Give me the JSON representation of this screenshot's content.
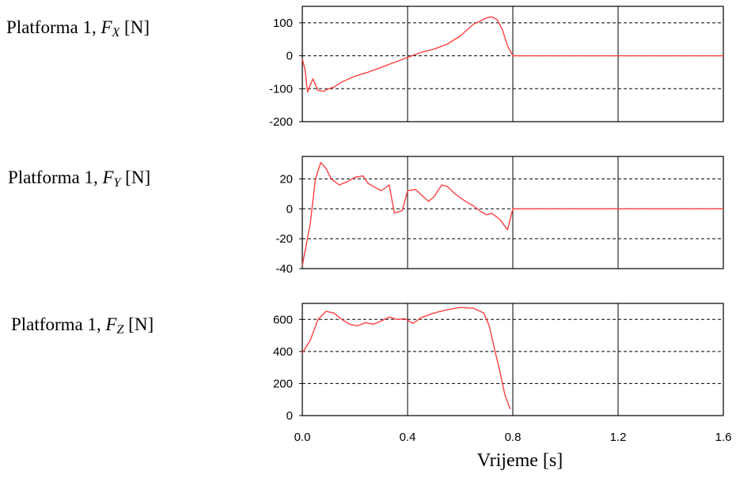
{
  "panels": [
    {
      "label_prefix": "Platforma 1, ",
      "label_var": "F",
      "label_sub": "X",
      "label_unit": " [N]"
    },
    {
      "label_prefix": "Platforma 1, ",
      "label_var": "F",
      "label_sub": "Y",
      "label_unit": " [N]"
    },
    {
      "label_prefix": "Platforma 1, ",
      "label_var": "F",
      "label_sub": "Z",
      "label_unit": " [N]"
    }
  ],
  "xlabel": "Vrijeme [s]",
  "x_ticks": [
    "0.0",
    "0.4",
    "0.8",
    "1.2",
    "1.6"
  ],
  "colors": {
    "series": "#ff4040",
    "axes": "#000000",
    "grid": "#000000"
  },
  "chart_data": [
    {
      "type": "line",
      "xlim": [
        0,
        1.6
      ],
      "ylim": [
        -200,
        150
      ],
      "y_ticks": [
        100,
        0,
        -100,
        -200
      ],
      "y_tick_labels": [
        "100",
        "0",
        "-100",
        "-200"
      ],
      "vertical_grid": [
        0.4,
        0.8,
        1.2
      ],
      "vertical_grid_style": "solid",
      "horizontal_grid": [
        100,
        0,
        -100
      ],
      "horizontal_grid_style": "dashed",
      "xlabel": "Vrijeme [s]",
      "series": [
        {
          "x": [
            0.0,
            0.01,
            0.02,
            0.04,
            0.06,
            0.08,
            0.1,
            0.12,
            0.15,
            0.2,
            0.25,
            0.3,
            0.35,
            0.4,
            0.45,
            0.5,
            0.55,
            0.6,
            0.65,
            0.7,
            0.72,
            0.74,
            0.76,
            0.78,
            0.8,
            1.6
          ],
          "y": [
            -10,
            -40,
            -110,
            -70,
            -105,
            -108,
            -100,
            -95,
            -80,
            -62,
            -50,
            -35,
            -20,
            -5,
            10,
            20,
            35,
            60,
            95,
            115,
            118,
            110,
            80,
            30,
            0,
            0
          ]
        }
      ]
    },
    {
      "type": "line",
      "xlim": [
        0,
        1.6
      ],
      "ylim": [
        -40,
        35
      ],
      "y_ticks": [
        20,
        0,
        -20,
        -40
      ],
      "y_tick_labels": [
        "20",
        "0",
        "-20",
        "-40"
      ],
      "vertical_grid": [
        0.4,
        0.8,
        1.2
      ],
      "vertical_grid_style": "solid",
      "horizontal_grid": [
        20,
        0,
        -20
      ],
      "horizontal_grid_style": "dashed",
      "xlabel": "Vrijeme [s]",
      "series": [
        {
          "x": [
            0.0,
            0.03,
            0.05,
            0.07,
            0.09,
            0.11,
            0.14,
            0.17,
            0.2,
            0.23,
            0.25,
            0.28,
            0.3,
            0.33,
            0.35,
            0.38,
            0.4,
            0.43,
            0.46,
            0.48,
            0.5,
            0.53,
            0.55,
            0.58,
            0.62,
            0.65,
            0.68,
            0.7,
            0.72,
            0.75,
            0.78,
            0.8,
            1.6
          ],
          "y": [
            -38,
            -10,
            20,
            31,
            27,
            20,
            16,
            18,
            21,
            22,
            17,
            14,
            12,
            16,
            -3,
            -1,
            12,
            13,
            8,
            5,
            8,
            16,
            15,
            10,
            5,
            2,
            -2,
            -4,
            -3,
            -7,
            -14,
            0,
            0
          ]
        }
      ]
    },
    {
      "type": "line",
      "xlim": [
        0,
        1.6
      ],
      "ylim": [
        0,
        700
      ],
      "y_ticks": [
        600,
        400,
        200,
        0
      ],
      "y_tick_labels": [
        "600",
        "400",
        "200",
        "0"
      ],
      "vertical_grid": [
        0.4,
        0.8,
        1.2
      ],
      "vertical_grid_style": "solid",
      "horizontal_grid": [
        600,
        400,
        200
      ],
      "horizontal_grid_style": "dashed",
      "xlabel": "Vrijeme [s]",
      "series": [
        {
          "x": [
            0.0,
            0.03,
            0.06,
            0.09,
            0.12,
            0.15,
            0.18,
            0.21,
            0.24,
            0.27,
            0.3,
            0.33,
            0.36,
            0.39,
            0.42,
            0.45,
            0.5,
            0.55,
            0.6,
            0.65,
            0.69,
            0.71,
            0.73,
            0.75,
            0.77,
            0.79
          ],
          "y": [
            390,
            470,
            600,
            650,
            640,
            600,
            570,
            560,
            580,
            570,
            590,
            615,
            600,
            605,
            575,
            610,
            640,
            660,
            675,
            670,
            640,
            560,
            420,
            280,
            130,
            40
          ]
        }
      ]
    }
  ]
}
